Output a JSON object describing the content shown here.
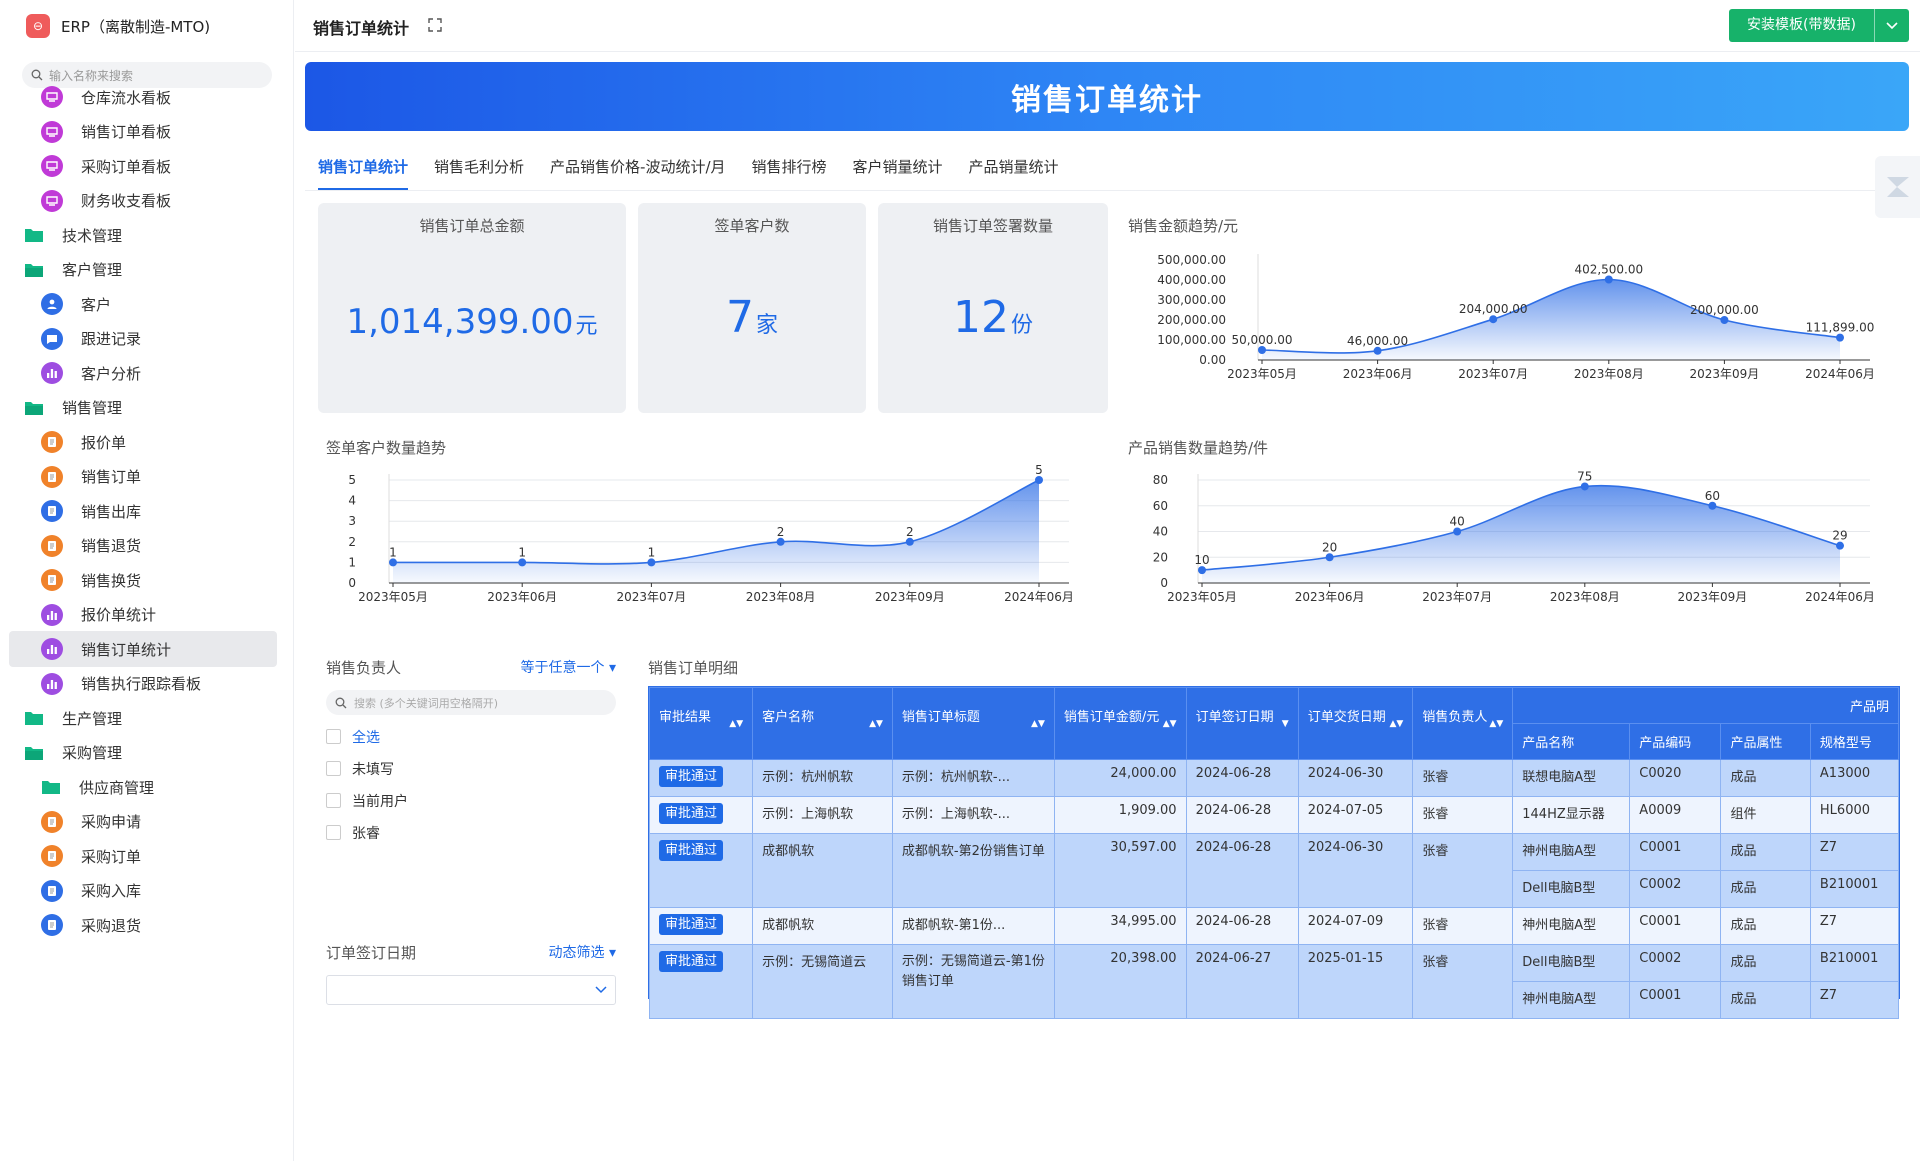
{
  "app": {
    "logo_glyph": "⊖",
    "title": "ERP（离散制造-MTO)"
  },
  "sidebar": {
    "search_placeholder": "输入名称来搜索",
    "items": [
      {
        "label": "仓库流水看板",
        "kind": "sub",
        "icon": "board-icon",
        "color": "pink"
      },
      {
        "label": "销售订单看板",
        "kind": "sub",
        "icon": "board-icon",
        "color": "pink"
      },
      {
        "label": "采购订单看板",
        "kind": "sub",
        "icon": "board-icon",
        "color": "pink"
      },
      {
        "label": "财务收支看板",
        "kind": "sub",
        "icon": "board-icon",
        "color": "pink"
      },
      {
        "label": "技术管理",
        "kind": "group",
        "icon": "folder-icon"
      },
      {
        "label": "客户管理",
        "kind": "group",
        "icon": "folder-open-icon"
      },
      {
        "label": "客户",
        "kind": "sub",
        "icon": "user-icon",
        "color": "blue"
      },
      {
        "label": "跟进记录",
        "kind": "sub",
        "icon": "chat-icon",
        "color": "blue"
      },
      {
        "label": "客户分析",
        "kind": "sub",
        "icon": "bar-chart-icon",
        "color": "purple"
      },
      {
        "label": "销售管理",
        "kind": "group",
        "icon": "folder-open-icon"
      },
      {
        "label": "报价单",
        "kind": "sub",
        "icon": "doc-icon",
        "color": "orange"
      },
      {
        "label": "销售订单",
        "kind": "sub",
        "icon": "doc-icon",
        "color": "orange"
      },
      {
        "label": "销售出库",
        "kind": "sub",
        "icon": "doc-icon",
        "color": "blue"
      },
      {
        "label": "销售退货",
        "kind": "sub",
        "icon": "doc-icon",
        "color": "orange"
      },
      {
        "label": "销售换货",
        "kind": "sub",
        "icon": "doc-icon",
        "color": "orange"
      },
      {
        "label": "报价单统计",
        "kind": "sub",
        "icon": "bar-chart-icon",
        "color": "purple"
      },
      {
        "label": "销售订单统计",
        "kind": "sub",
        "icon": "bar-chart-icon",
        "color": "purple",
        "active": true
      },
      {
        "label": "销售执行跟踪看板",
        "kind": "sub",
        "icon": "bar-chart-icon",
        "color": "purple"
      },
      {
        "label": "生产管理",
        "kind": "group",
        "icon": "folder-icon"
      },
      {
        "label": "采购管理",
        "kind": "group",
        "icon": "folder-open-icon"
      },
      {
        "label": "供应商管理",
        "kind": "sub",
        "icon": "folder-icon",
        "color": "green"
      },
      {
        "label": "采购申请",
        "kind": "sub",
        "icon": "doc-icon",
        "color": "orange"
      },
      {
        "label": "采购订单",
        "kind": "sub",
        "icon": "doc-icon",
        "color": "orange"
      },
      {
        "label": "采购入库",
        "kind": "sub",
        "icon": "doc-icon",
        "color": "blue"
      },
      {
        "label": "采购退货",
        "kind": "sub",
        "icon": "doc-icon",
        "color": "blue"
      }
    ]
  },
  "header": {
    "page_title": "销售订单统计",
    "install_label": "安装模板(带数据)"
  },
  "banner": {
    "title": "销售订单统计"
  },
  "tabs": [
    "销售订单统计",
    "销售毛利分析",
    "产品销售价格-波动统计/月",
    "销售排行榜",
    "客户销量统计",
    "产品销量统计"
  ],
  "cards": [
    {
      "title": "销售订单总金额",
      "value": "1,014,399.00",
      "unit": "元"
    },
    {
      "title": "签单客户数",
      "value": "7",
      "unit": "家"
    },
    {
      "title": "销售订单签署数量",
      "value": "12",
      "unit": "份"
    }
  ],
  "chart_data": [
    {
      "id": "amount",
      "type": "area",
      "title": "销售金额趋势/元",
      "categories": [
        "2023年05月",
        "2023年06月",
        "2023年07月",
        "2023年08月",
        "2023年09月",
        "2024年06月"
      ],
      "values": [
        50000,
        46000,
        204000,
        402500,
        200000,
        111899
      ],
      "value_labels": [
        "50,000.00",
        "46,000.00",
        "204,000.00",
        "402,500.00",
        "200,000.00",
        "111,899.00"
      ],
      "yticks": [
        "0.00",
        "100,000.00",
        "200,000.00",
        "300,000.00",
        "400,000.00",
        "500,000.00"
      ],
      "ylim": [
        0,
        500000
      ],
      "grid": false,
      "color": "#2f6fe6"
    },
    {
      "id": "customers",
      "type": "area",
      "title": "签单客户数量趋势",
      "categories": [
        "2023年05月",
        "2023年06月",
        "2023年07月",
        "2023年08月",
        "2023年09月",
        "2024年06月"
      ],
      "values": [
        1,
        1,
        1,
        2,
        2,
        5
      ],
      "value_labels": [
        "1",
        "1",
        "1",
        "2",
        "2",
        "5"
      ],
      "yticks": [
        "0",
        "1",
        "2",
        "3",
        "4",
        "5"
      ],
      "ylim": [
        0,
        5
      ],
      "grid": true,
      "color": "#2f6fe6"
    },
    {
      "id": "quantity",
      "type": "area",
      "title": "产品销售数量趋势/件",
      "categories": [
        "2023年05月",
        "2023年06月",
        "2023年07月",
        "2023年08月",
        "2023年09月",
        "2024年06月"
      ],
      "values": [
        10,
        20,
        40,
        75,
        60,
        29
      ],
      "value_labels": [
        "10",
        "20",
        "40",
        "75",
        "60",
        "29"
      ],
      "yticks": [
        "0",
        "20",
        "40",
        "60",
        "80"
      ],
      "ylim": [
        0,
        80
      ],
      "grid": true,
      "color": "#2f6fe6"
    }
  ],
  "filter_owner": {
    "title": "销售负责人",
    "mode": "等于任意一个",
    "search_placeholder": "搜索 (多个关键词用空格隔开)",
    "options": [
      "全选",
      "未填写",
      "当前用户",
      "张睿"
    ]
  },
  "filter_date": {
    "title": "订单签订日期",
    "mode": "动态筛选"
  },
  "table": {
    "title": "销售订单明细",
    "group_header": "产品明",
    "headers": [
      "审批结果",
      "客户名称",
      "销售订单标题",
      "销售订单金额/元",
      "订单签订日期",
      "订单交货日期",
      "销售负责人"
    ],
    "sub_headers": [
      "产品名称",
      "产品编码",
      "产品属性",
      "规格型号"
    ],
    "rows": [
      {
        "status": "审批通过",
        "customer": "示例：杭州帆软",
        "title": "示例：杭州帆软-...",
        "amount": "24,000.00",
        "sign": "2024-06-28",
        "deliver": "2024-06-30",
        "owner": "张睿",
        "products": [
          {
            "name": "联想电脑A型",
            "code": "C0020",
            "attr": "成品",
            "spec": "A13000"
          }
        ]
      },
      {
        "status": "审批通过",
        "customer": "示例：上海帆软",
        "title": "示例：上海帆软-...",
        "amount": "1,909.00",
        "sign": "2024-06-28",
        "deliver": "2024-07-05",
        "owner": "张睿",
        "products": [
          {
            "name": "144HZ显示器",
            "code": "A0009",
            "attr": "组件",
            "spec": "HL6000"
          }
        ]
      },
      {
        "status": "审批通过",
        "customer": "成都帆软",
        "title": "成都帆软-第2份销售订单",
        "amount": "30,597.00",
        "sign": "2024-06-28",
        "deliver": "2024-06-30",
        "owner": "张睿",
        "products": [
          {
            "name": "神州电脑A型",
            "code": "C0001",
            "attr": "成品",
            "spec": "Z7"
          },
          {
            "name": "Dell电脑B型",
            "code": "C0002",
            "attr": "成品",
            "spec": "B210001"
          }
        ]
      },
      {
        "status": "审批通过",
        "customer": "成都帆软",
        "title": "成都帆软-第1份...",
        "amount": "34,995.00",
        "sign": "2024-06-28",
        "deliver": "2024-07-09",
        "owner": "张睿",
        "products": [
          {
            "name": "神州电脑A型",
            "code": "C0001",
            "attr": "成品",
            "spec": "Z7"
          }
        ]
      },
      {
        "status": "审批通过",
        "customer": "示例：无锡简道云",
        "title": "示例：无锡简道云-第1份销售订单",
        "amount": "20,398.00",
        "sign": "2024-06-27",
        "deliver": "2025-01-15",
        "owner": "张睿",
        "products": [
          {
            "name": "Dell电脑B型",
            "code": "C0002",
            "attr": "成品",
            "spec": "B210001"
          },
          {
            "name": "神州电脑A型",
            "code": "C0001",
            "attr": "成品",
            "spec": "Z7"
          }
        ]
      }
    ]
  }
}
